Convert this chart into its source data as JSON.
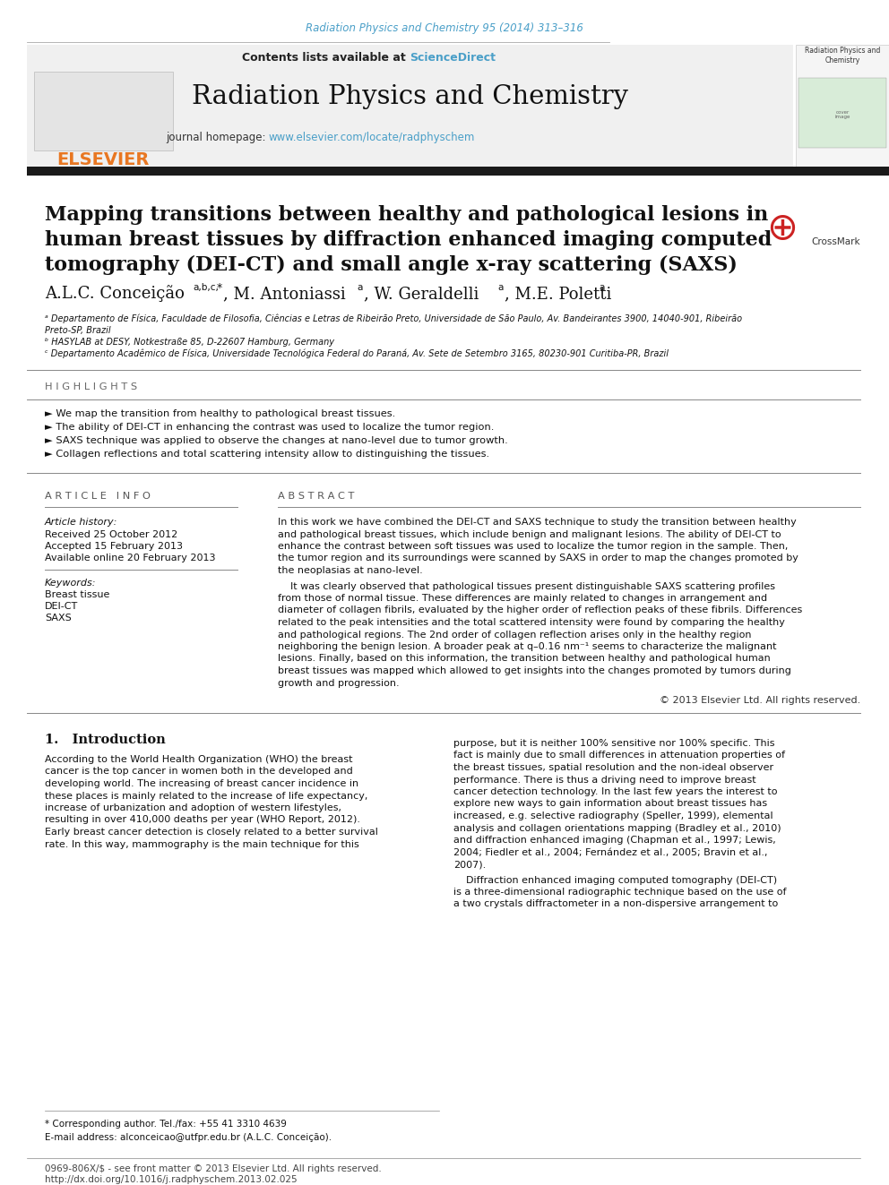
{
  "journal_ref": "Radiation Physics and Chemistry 95 (2014) 313–316",
  "journal_ref_color": "#4a9fc8",
  "header_bg": "#e8e8e8",
  "sciencedirect_color": "#4a9fc8",
  "journal_title": "Radiation Physics and Chemistry",
  "journal_url": "www.elsevier.com/locate/radphyschem",
  "journal_url_color": "#4a9fc8",
  "thick_bar_color": "#1a1a1a",
  "paper_title_line1": "Mapping transitions between healthy and pathological lesions in",
  "paper_title_line2": "human breast tissues by diffraction enhanced imaging computed",
  "paper_title_line3": "tomography (DEI-CT) and small angle x-ray scattering (SAXS)",
  "affil_a": "ᵃ Departamento de Física, Faculdade de Filosofia, Ciências e Letras de Ribeirão Preto, Universidade de São Paulo, Av. Bandeirantes 3900, 14040-901, Ribeirão",
  "affil_a2": "Preto-SP, Brazil",
  "affil_b": "ᵇ HASYLAB at DESY, Notkestraße 85, D-22607 Hamburg, Germany",
  "affil_c": "ᶜ Departamento Acadêmico de Física, Universidade Tecnológica Federal do Paraná, Av. Sete de Setembro 3165, 80230-901 Curitiba-PR, Brazil",
  "highlights_title": "H I G H L I G H T S",
  "highlight1": "► We map the transition from healthy to pathological breast tissues.",
  "highlight2": "► The ability of DEI-CT in enhancing the contrast was used to localize the tumor region.",
  "highlight3": "► SAXS technique was applied to observe the changes at nano-level due to tumor growth.",
  "highlight4": "► Collagen reflections and total scattering intensity allow to distinguishing the tissues.",
  "article_info_title": "A R T I C L E   I N F O",
  "abstract_title": "A B S T R A C T",
  "article_history_label": "Article history:",
  "received": "Received 25 October 2012",
  "accepted": "Accepted 15 February 2013",
  "available": "Available online 20 February 2013",
  "keywords_label": "Keywords:",
  "keyword1": "Breast tissue",
  "keyword2": "DEI-CT",
  "keyword3": "SAXS",
  "abstract_p1_lines": [
    "In this work we have combined the DEI-CT and SAXS technique to study the transition between healthy",
    "and pathological breast tissues, which include benign and malignant lesions. The ability of DEI-CT to",
    "enhance the contrast between soft tissues was used to localize the tumor region in the sample. Then,",
    "the tumor region and its surroundings were scanned by SAXS in order to map the changes promoted by",
    "the neoplasias at nano-level."
  ],
  "abstract_p2_lines": [
    "    It was clearly observed that pathological tissues present distinguishable SAXS scattering profiles",
    "from those of normal tissue. These differences are mainly related to changes in arrangement and",
    "diameter of collagen fibrils, evaluated by the higher order of reflection peaks of these fibrils. Differences",
    "related to the peak intensities and the total scattered intensity were found by comparing the healthy",
    "and pathological regions. The 2nd order of collagen reflection arises only in the healthy region",
    "neighboring the benign lesion. A broader peak at q–0.16 nm⁻¹ seems to characterize the malignant",
    "lesions. Finally, based on this information, the transition between healthy and pathological human",
    "breast tissues was mapped which allowed to get insights into the changes promoted by tumors during",
    "growth and progression."
  ],
  "copyright": "© 2013 Elsevier Ltd. All rights reserved.",
  "intro_title": "1.   Introduction",
  "intro_p1_lines": [
    "According to the World Health Organization (WHO) the breast",
    "cancer is the top cancer in women both in the developed and",
    "developing world. The increasing of breast cancer incidence in",
    "these places is mainly related to the increase of life expectancy,",
    "increase of urbanization and adoption of western lifestyles,",
    "resulting in over 410,000 deaths per year (WHO Report, 2012).",
    "Early breast cancer detection is closely related to a better survival",
    "rate. In this way, mammography is the main technique for this"
  ],
  "intro_p2_lines": [
    "purpose, but it is neither 100% sensitive nor 100% specific. This",
    "fact is mainly due to small differences in attenuation properties of",
    "the breast tissues, spatial resolution and the non-ideal observer",
    "performance. There is thus a driving need to improve breast",
    "cancer detection technology. In the last few years the interest to",
    "explore new ways to gain information about breast tissues has",
    "increased, e.g. selective radiography (Speller, 1999), elemental",
    "analysis and collagen orientations mapping (Bradley et al., 2010)",
    "and diffraction enhanced imaging (Chapman et al., 1997; Lewis,",
    "2004; Fiedler et al., 2004; Fernández et al., 2005; Bravin et al.,",
    "2007)."
  ],
  "intro_p3_lines": [
    "    Diffraction enhanced imaging computed tomography (DEI-CT)",
    "is a three-dimensional radiographic technique based on the use of",
    "a two crystals diffractometer in a non-dispersive arrangement to"
  ],
  "footnote_star": "* Corresponding author. Tel./fax: +55 41 3310 4639",
  "footnote_email": "E-mail address: alconceicao@utfpr.edu.br (A.L.C. Conceição).",
  "footer_issn": "0969-806X/$ - see front matter © 2013 Elsevier Ltd. All rights reserved.",
  "footer_doi": "http://dx.doi.org/10.1016/j.radphyschem.2013.02.025",
  "link_color": "#4a9fc8",
  "bg_white": "#ffffff",
  "elsevier_orange": "#e87722"
}
